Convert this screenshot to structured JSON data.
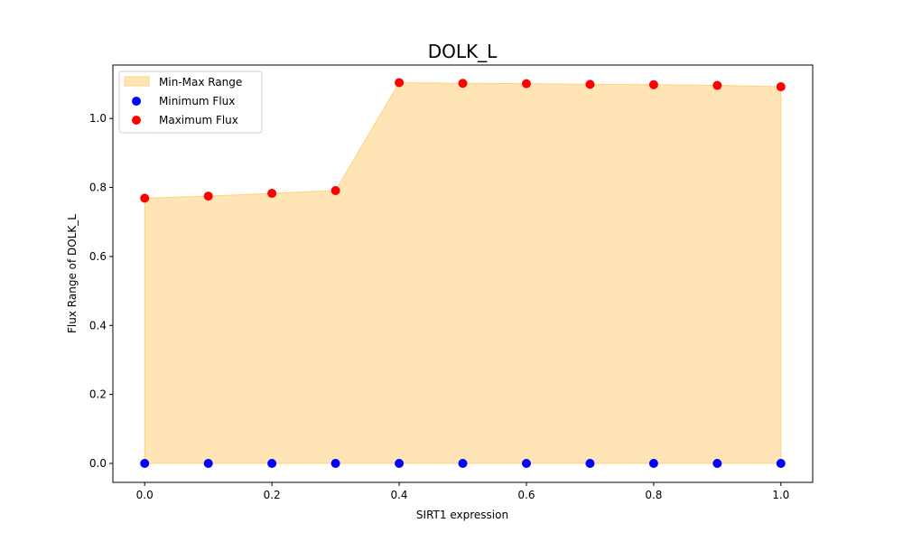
{
  "chart_data": {
    "type": "area",
    "title": "DOLK_L",
    "xlabel": "SIRT1 expression",
    "ylabel": "Flux Range of DOLK_L",
    "x": [
      0.0,
      0.1,
      0.2,
      0.3,
      0.4,
      0.5,
      0.6,
      0.7,
      0.8,
      0.9,
      1.0
    ],
    "xlim": [
      -0.05,
      1.05
    ],
    "ylim": [
      -0.055,
      1.155
    ],
    "xticks": [
      "0.0",
      "0.2",
      "0.4",
      "0.6",
      "0.8",
      "1.0"
    ],
    "yticks": [
      "0.0",
      "0.2",
      "0.4",
      "0.6",
      "0.8",
      "1.0"
    ],
    "grid": false,
    "legend_position": "upper left",
    "series": [
      {
        "name": "Min-Max Range",
        "kind": "fill_between",
        "color": "#ffe4b5",
        "edge_color": "#ffd27f",
        "lower": [
          0,
          0,
          0,
          0,
          0,
          0,
          0,
          0,
          0,
          0,
          0
        ],
        "upper": [
          0.769,
          0.775,
          0.783,
          0.791,
          1.104,
          1.102,
          1.101,
          1.099,
          1.098,
          1.096,
          1.092
        ]
      },
      {
        "name": "Minimum Flux",
        "kind": "scatter",
        "color": "#0000ff",
        "values": [
          0,
          0,
          0,
          0,
          0,
          0,
          0,
          0,
          0,
          0,
          0
        ]
      },
      {
        "name": "Maximum Flux",
        "kind": "scatter",
        "color": "#ff0000",
        "values": [
          0.769,
          0.775,
          0.783,
          0.791,
          1.104,
          1.102,
          1.101,
          1.099,
          1.098,
          1.096,
          1.092
        ]
      }
    ]
  }
}
